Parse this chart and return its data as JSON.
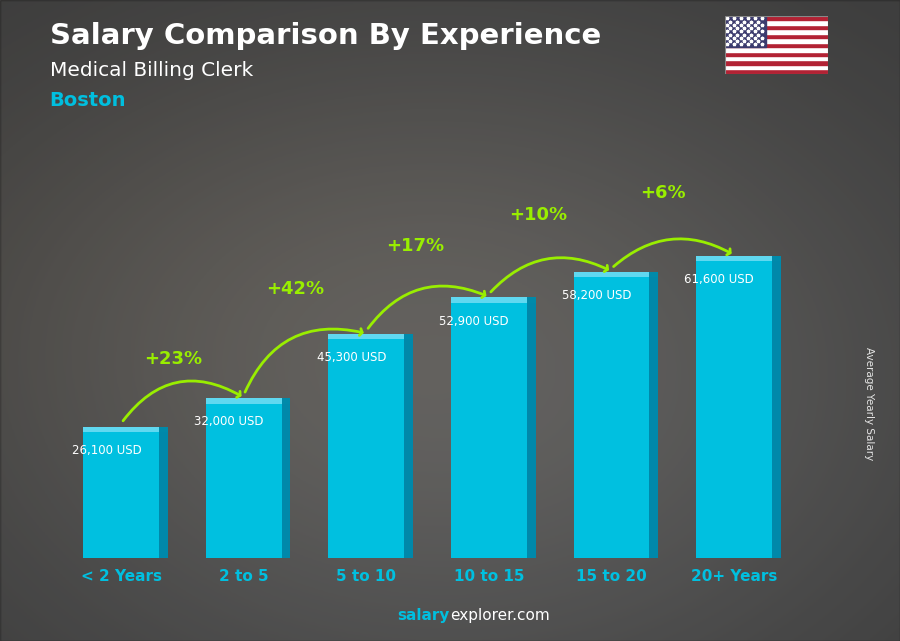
{
  "title_line1": "Salary Comparison By Experience",
  "title_line2": "Medical Billing Clerk",
  "title_line3": "Boston",
  "categories": [
    "< 2 Years",
    "2 to 5",
    "5 to 10",
    "10 to 15",
    "15 to 20",
    "20+ Years"
  ],
  "values": [
    26100,
    32000,
    45300,
    52900,
    58200,
    61600
  ],
  "value_labels": [
    "26,100 USD",
    "32,000 USD",
    "45,300 USD",
    "52,900 USD",
    "58,200 USD",
    "61,600 USD"
  ],
  "pct_labels": [
    "+23%",
    "+42%",
    "+17%",
    "+10%",
    "+6%"
  ],
  "bar_color_face": "#00C0E0",
  "bar_color_right": "#0088AA",
  "bar_color_top": "#60D8F0",
  "bar_color_top2": "#008AAA",
  "background_color": "#555555",
  "ylabel": "Average Yearly Salary",
  "title_color": "#ffffff",
  "subtitle_color": "#ffffff",
  "boston_color": "#00BFDF",
  "pct_color": "#99EE00",
  "value_label_color": "#ffffff",
  "xlabel_color": "#00C0E0",
  "footer_salary_color": "#00BFDF",
  "footer_rest_color": "#ffffff"
}
